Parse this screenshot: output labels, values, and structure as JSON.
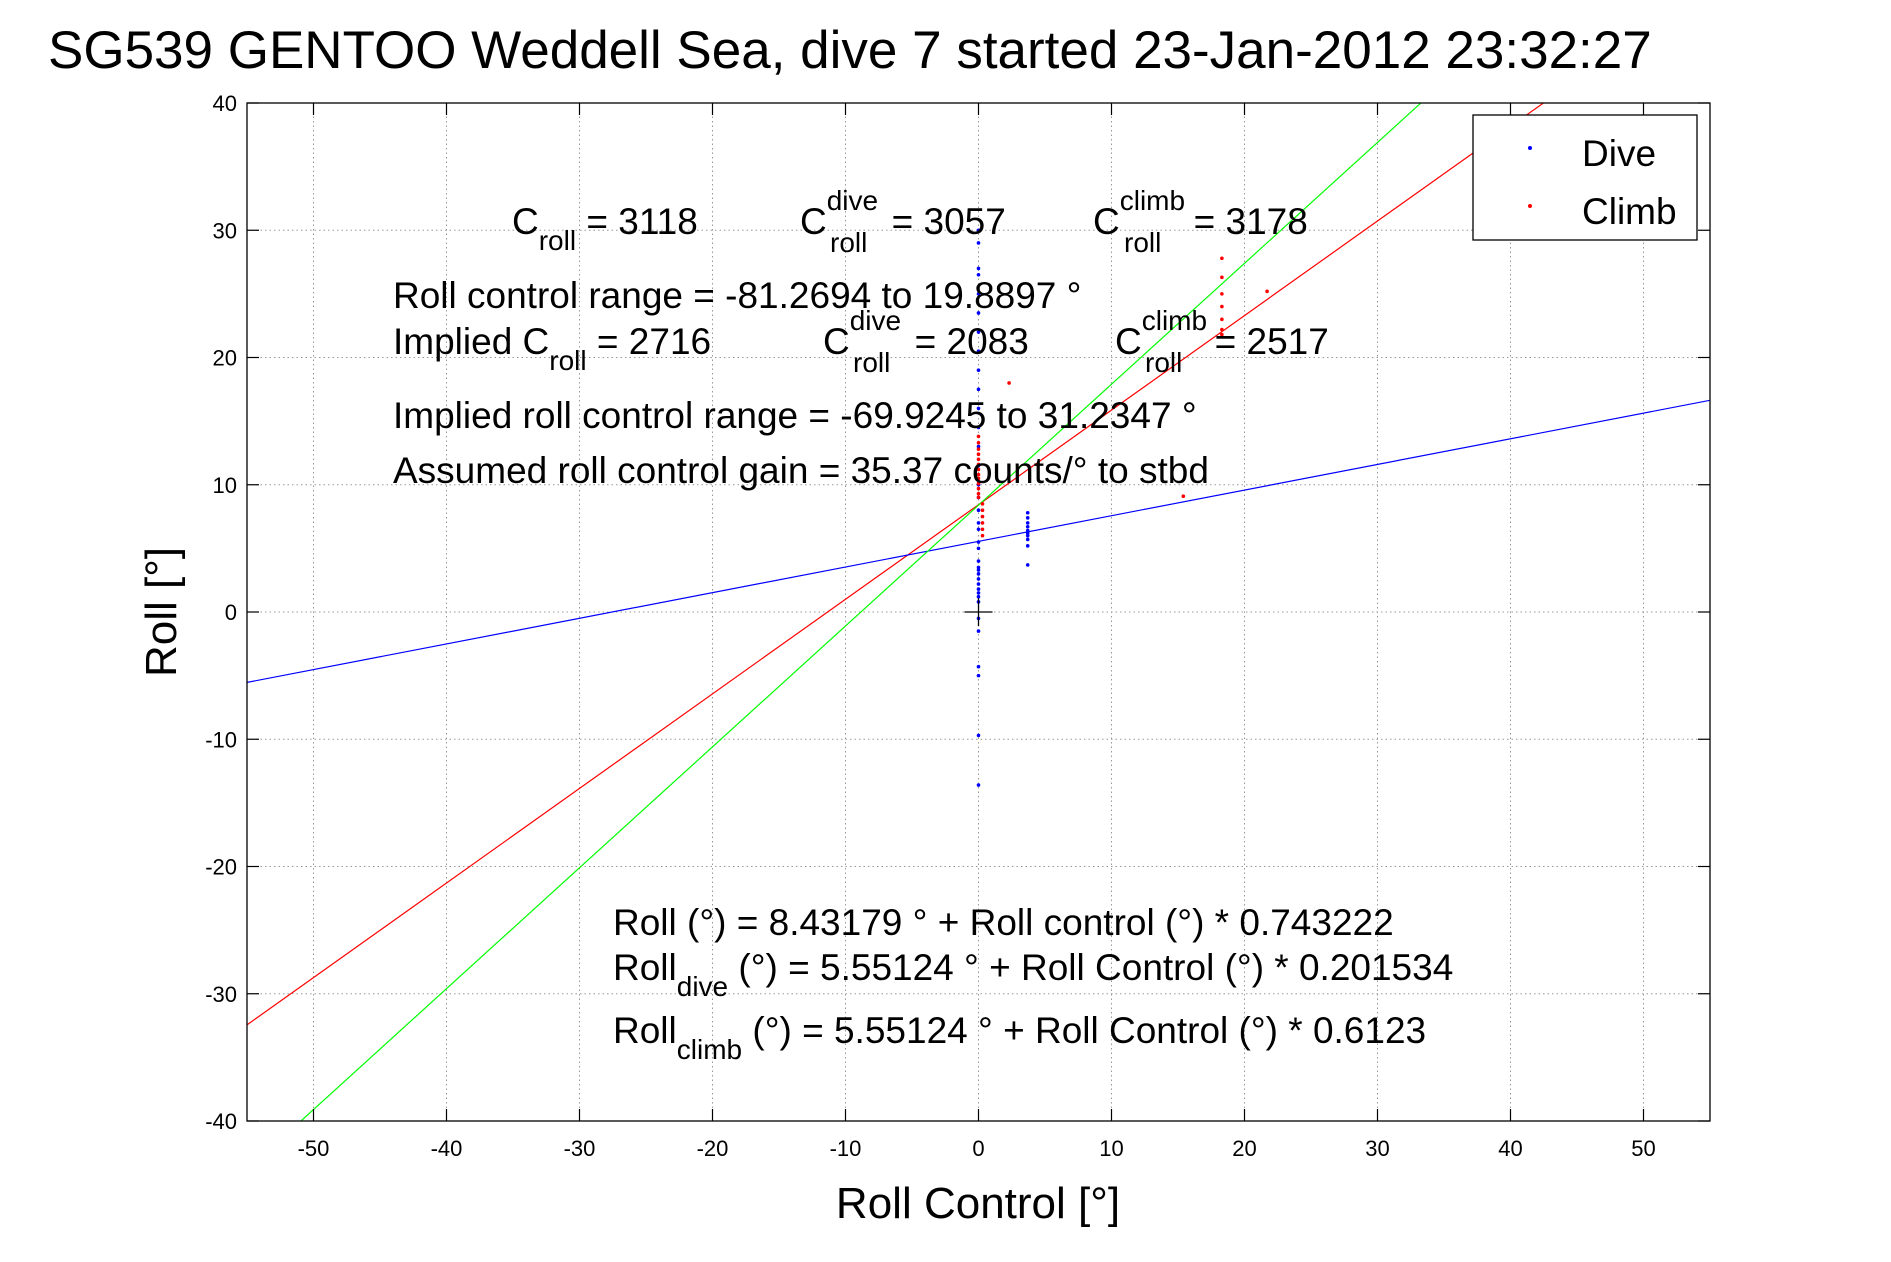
{
  "chart_data": {
    "type": "scatter",
    "title": "SG539 GENTOO Weddell Sea, dive 7 started 23-Jan-2012 23:32:27",
    "xlabel": "Roll Control [°]",
    "ylabel": "Roll [°]",
    "xlim": [
      -55,
      55
    ],
    "ylim": [
      -40,
      40
    ],
    "xticks": [
      -50,
      -40,
      -30,
      -20,
      -10,
      0,
      10,
      20,
      30,
      40,
      50
    ],
    "yticks": [
      -40,
      -30,
      -20,
      -10,
      0,
      10,
      20,
      30,
      40
    ],
    "grid": true,
    "legend_position": "top-right",
    "series": [
      {
        "name": "Dive",
        "color": "#0000ff",
        "points": [
          [
            0,
            30
          ],
          [
            0,
            29
          ],
          [
            0,
            27
          ],
          [
            0,
            26.5
          ],
          [
            0,
            25
          ],
          [
            0,
            23.5
          ],
          [
            0,
            22
          ],
          [
            0,
            20.5
          ],
          [
            0,
            19
          ],
          [
            0,
            17.5
          ],
          [
            0,
            16
          ],
          [
            0,
            14.5
          ],
          [
            0,
            13
          ],
          [
            0,
            11.5
          ],
          [
            0,
            10
          ],
          [
            0,
            9
          ],
          [
            0,
            8
          ],
          [
            0,
            7
          ],
          [
            0,
            6.5
          ],
          [
            0,
            5.5
          ],
          [
            0,
            5
          ],
          [
            0,
            4
          ],
          [
            0,
            3.5
          ],
          [
            0,
            3.3
          ],
          [
            0,
            3
          ],
          [
            0,
            2.6
          ],
          [
            0,
            2.2
          ],
          [
            0,
            1.8
          ],
          [
            0,
            1.5
          ],
          [
            0,
            1.2
          ],
          [
            0,
            0.8
          ],
          [
            0,
            -0.5
          ],
          [
            0,
            -1.5
          ],
          [
            0,
            -4.3
          ],
          [
            0,
            -5
          ],
          [
            0,
            -9.7
          ],
          [
            0,
            -13.6
          ],
          [
            3.7,
            7.8
          ],
          [
            3.7,
            7.4
          ],
          [
            3.7,
            7.0
          ],
          [
            3.7,
            6.7
          ],
          [
            3.7,
            6.4
          ],
          [
            3.7,
            6.2
          ],
          [
            3.7,
            6.0
          ],
          [
            3.7,
            5.7
          ],
          [
            3.7,
            5.2
          ],
          [
            3.7,
            3.7
          ]
        ]
      },
      {
        "name": "Climb",
        "color": "#ff0000",
        "points": [
          [
            0,
            13.8
          ],
          [
            0,
            13.3
          ],
          [
            0,
            12.8
          ],
          [
            0,
            12.4
          ],
          [
            0,
            12
          ],
          [
            0,
            11.6
          ],
          [
            0,
            11.2
          ],
          [
            0,
            10.8
          ],
          [
            0,
            10.5
          ],
          [
            0,
            10.1
          ],
          [
            0,
            9.7
          ],
          [
            0,
            9.3
          ],
          [
            0,
            9
          ],
          [
            0.3,
            8.5
          ],
          [
            0.3,
            8
          ],
          [
            0.3,
            7.5
          ],
          [
            0.3,
            7
          ],
          [
            0.3,
            6.5
          ],
          [
            0.3,
            6
          ],
          [
            2.3,
            18
          ],
          [
            15.4,
            9.1
          ],
          [
            18.3,
            27.8
          ],
          [
            18.3,
            26.3
          ],
          [
            18.3,
            25
          ],
          [
            18.3,
            24
          ],
          [
            18.3,
            23
          ],
          [
            18.3,
            22.2
          ],
          [
            18.3,
            21.8
          ],
          [
            21.7,
            25.2
          ]
        ]
      }
    ],
    "fit_lines": [
      {
        "color": "#ff0000",
        "intercept": 8.43179,
        "slope": 0.743222
      },
      {
        "color": "#0000ff",
        "intercept": 5.55124,
        "slope": 0.201534
      },
      {
        "color": "#00ff00",
        "intercept": 8.4,
        "slope": 0.95
      }
    ],
    "annotations": {
      "line1": [
        {
          "base": "C",
          "sub": "roll",
          "value": " = 3118"
        },
        {
          "base": "C",
          "sup": "dive",
          "sub": "roll",
          "value": " = 3057"
        },
        {
          "base": "C",
          "sup": "climb",
          "sub": "roll",
          "value": " = 3178"
        }
      ],
      "line2": "Roll control range = -81.2694 to 19.8897 °",
      "line3": [
        {
          "base": "Implied C",
          "sub": "roll",
          "value": " = 2716"
        },
        {
          "base": "C",
          "sup": "dive",
          "sub": "roll",
          "value": " = 2083"
        },
        {
          "base": "C",
          "sup": "climb",
          "sub": "roll",
          "value": " = 2517"
        }
      ],
      "line4": "Implied roll control range = -69.9245 to 31.2347 °",
      "line5": "Assumed roll control gain = 35.37 counts/° to stbd",
      "eq1": "Roll (°) = 8.43179 ° + Roll control (°) * 0.743222",
      "eq2": {
        "base": "Roll",
        "sub": "dive",
        "rest": " (°) = 5.55124 ° + Roll Control (°) * 0.201534"
      },
      "eq3": {
        "base": "Roll",
        "sub": "climb",
        "rest": " (°) = 5.55124 ° + Roll Control (°) * 0.6123"
      }
    }
  }
}
